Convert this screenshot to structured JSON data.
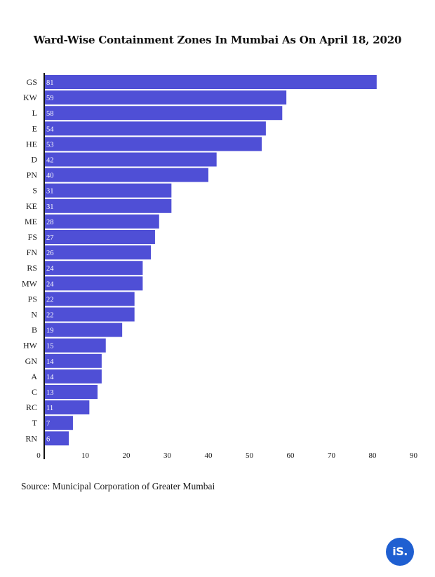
{
  "chart_data": {
    "type": "bar",
    "orientation": "horizontal",
    "title": "Ward-Wise Containment Zones In Mumbai As On April 18, 2020",
    "categories": [
      "GS",
      "KW",
      "L",
      "E",
      "HE",
      "D",
      "PN",
      "S",
      "KE",
      "ME",
      "FS",
      "FN",
      "RS",
      "MW",
      "PS",
      "N",
      "B",
      "HW",
      "GN",
      "A",
      "C",
      "RC",
      "T",
      "RN"
    ],
    "values": [
      81,
      59,
      58,
      54,
      53,
      42,
      40,
      31,
      31,
      28,
      27,
      26,
      24,
      24,
      22,
      22,
      19,
      15,
      14,
      14,
      13,
      11,
      7,
      6
    ],
    "xticks": [
      0,
      10,
      20,
      30,
      40,
      50,
      60,
      70,
      80,
      90
    ],
    "xlim": [
      0,
      90
    ],
    "xlabel": "",
    "ylabel": "",
    "grid": false,
    "bar_color": "#4f4fd6",
    "source": "Source: Municipal Corporation of Greater Mumbai"
  },
  "logo_text": "iS.",
  "logo_color": "#1f5fd1"
}
